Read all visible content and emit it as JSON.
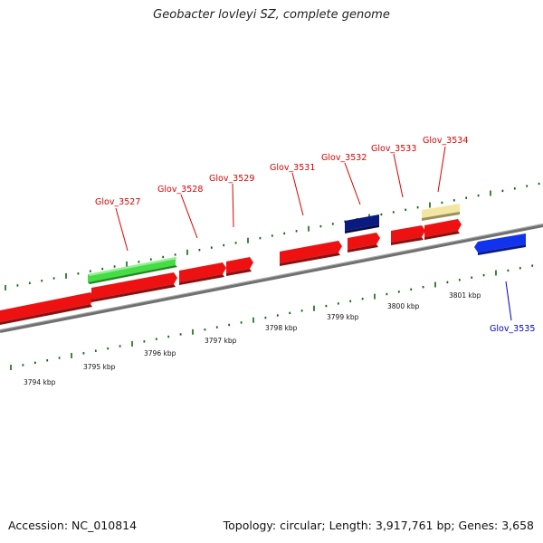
{
  "title": "Geobacter lovleyi SZ, complete genome",
  "footer": {
    "accession": "Accession: NC_010814",
    "summary": "Topology: circular; Length: 3,917,761 bp; Genes: 3,658"
  },
  "scale_labels": [
    "3794 kbp",
    "3795 kbp",
    "3796 kbp",
    "3797 kbp",
    "3798 kbp",
    "3799 kbp",
    "3800 kbp",
    "3801 kbp"
  ],
  "gene_labels": [
    {
      "name": "Glov_3527",
      "color": "#dd0000"
    },
    {
      "name": "Glov_3528",
      "color": "#dd0000"
    },
    {
      "name": "Glov_3529",
      "color": "#dd0000"
    },
    {
      "name": "Glov_3531",
      "color": "#dd0000"
    },
    {
      "name": "Glov_3532",
      "color": "#dd0000"
    },
    {
      "name": "Glov_3533",
      "color": "#dd0000"
    },
    {
      "name": "Glov_3534",
      "color": "#dd0000"
    },
    {
      "name": "Glov_3535",
      "color": "#0000cc"
    }
  ],
  "colors": {
    "cds": "#ee1111",
    "rrna_green": "#33cc33",
    "navy": "#001177",
    "pale_yellow": "#eee299",
    "blue": "#1133ee",
    "tick": "#116611",
    "backbone": "#888888"
  }
}
